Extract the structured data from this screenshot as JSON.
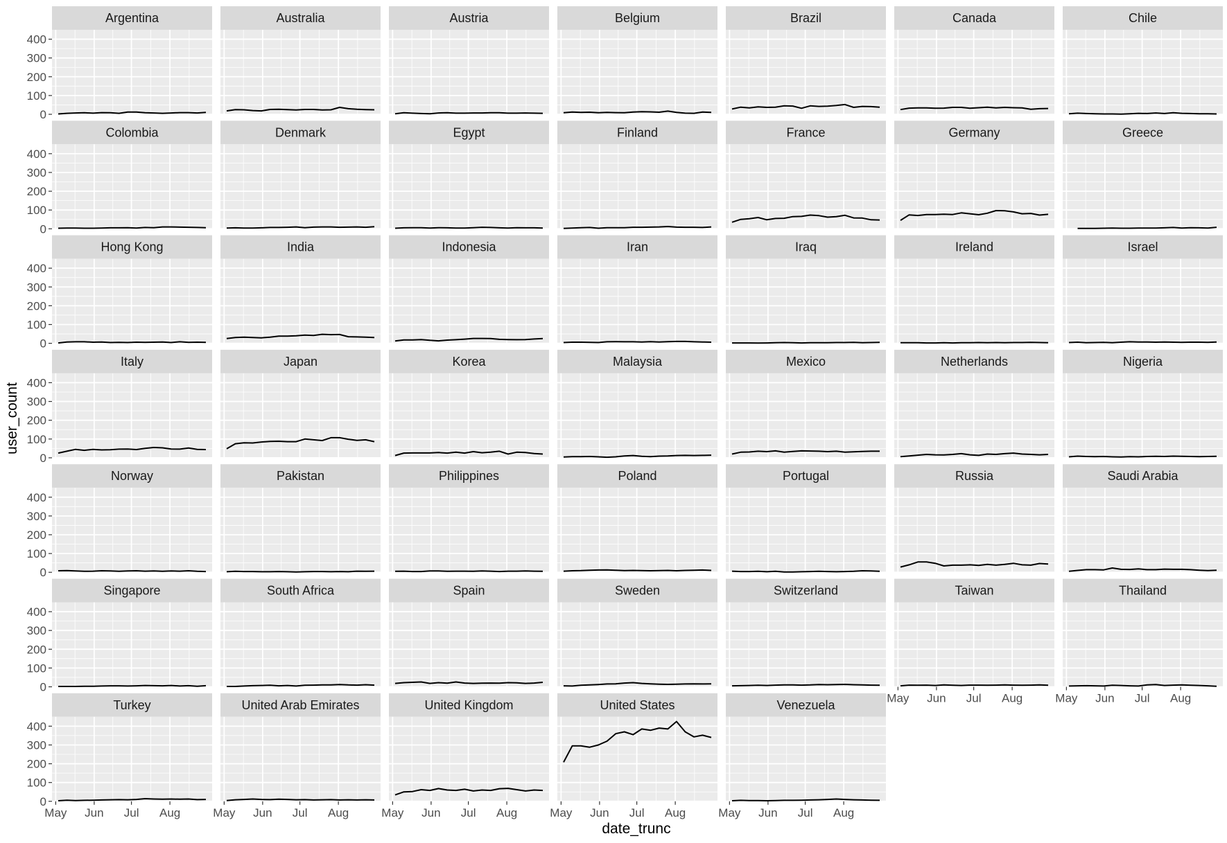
{
  "chart_data": {
    "type": "line",
    "layout": "facet_wrap",
    "xlabel": "date_trunc",
    "ylabel": "user_count",
    "ylim": [
      0,
      450
    ],
    "y_ticks": [
      0,
      100,
      200,
      300,
      400
    ],
    "y_tick_labels": [
      "0",
      "100",
      "200",
      "300",
      "400"
    ],
    "xlim": [
      "2021-04-28",
      "2021-09-04"
    ],
    "x_ticks": [
      "2021-05-01",
      "2021-06-01",
      "2021-07-01",
      "2021-08-01"
    ],
    "x_tick_labels": [
      "May",
      "Jun",
      "Jul",
      "Aug"
    ],
    "x_dates": [
      "2021-05-03",
      "2021-05-10",
      "2021-05-17",
      "2021-05-24",
      "2021-05-31",
      "2021-06-07",
      "2021-06-14",
      "2021-06-21",
      "2021-06-28",
      "2021-07-05",
      "2021-07-12",
      "2021-07-19",
      "2021-07-26",
      "2021-08-02",
      "2021-08-09",
      "2021-08-16",
      "2021-08-23",
      "2021-08-30"
    ],
    "grid": true,
    "colors": {
      "panel_bg": "#ebebeb",
      "strip_bg": "#d9d9d9",
      "grid": "#ffffff",
      "line": "#000000",
      "tick": "#333333"
    },
    "series": [
      {
        "name": "Argentina",
        "values": [
          2,
          5,
          7,
          8,
          6,
          9,
          8,
          5,
          12,
          12,
          8,
          7,
          5,
          7,
          9,
          9,
          7,
          10
        ]
      },
      {
        "name": "Australia",
        "values": [
          18,
          25,
          24,
          20,
          18,
          26,
          27,
          25,
          23,
          26,
          26,
          23,
          24,
          37,
          30,
          27,
          25,
          24
        ]
      },
      {
        "name": "Austria",
        "values": [
          3,
          8,
          6,
          4,
          3,
          7,
          8,
          6,
          6,
          7,
          7,
          8,
          8,
          6,
          6,
          7,
          6,
          5
        ]
      },
      {
        "name": "Belgium",
        "values": [
          8,
          12,
          10,
          11,
          8,
          10,
          9,
          8,
          12,
          14,
          13,
          11,
          17,
          10,
          6,
          5,
          12,
          10
        ]
      },
      {
        "name": "Brazil",
        "values": [
          28,
          38,
          34,
          40,
          37,
          38,
          45,
          44,
          32,
          45,
          42,
          43,
          47,
          52,
          37,
          42,
          41,
          38
        ]
      },
      {
        "name": "Canada",
        "values": [
          25,
          33,
          34,
          34,
          32,
          33,
          37,
          37,
          32,
          35,
          38,
          34,
          37,
          35,
          34,
          27,
          30,
          31
        ]
      },
      {
        "name": "Chile",
        "values": [
          3,
          6,
          4,
          3,
          2,
          2,
          1,
          3,
          5,
          4,
          7,
          4,
          8,
          5,
          4,
          3,
          3,
          2
        ]
      },
      {
        "name": "Colombia",
        "values": [
          3,
          4,
          4,
          3,
          3,
          4,
          5,
          5,
          6,
          4,
          7,
          6,
          10,
          10,
          9,
          8,
          7,
          6
        ]
      },
      {
        "name": "Denmark",
        "values": [
          4,
          5,
          4,
          4,
          5,
          7,
          7,
          8,
          10,
          6,
          9,
          10,
          10,
          8,
          9,
          10,
          8,
          11
        ]
      },
      {
        "name": "Egypt",
        "values": [
          3,
          5,
          6,
          6,
          4,
          6,
          5,
          4,
          4,
          6,
          8,
          7,
          5,
          4,
          6,
          5,
          5,
          4
        ]
      },
      {
        "name": "Finland",
        "values": [
          2,
          4,
          6,
          7,
          3,
          6,
          6,
          6,
          8,
          8,
          9,
          10,
          12,
          9,
          8,
          8,
          7,
          10
        ]
      },
      {
        "name": "France",
        "values": [
          35,
          50,
          54,
          60,
          48,
          55,
          56,
          65,
          66,
          73,
          70,
          62,
          65,
          72,
          58,
          57,
          48,
          47
        ]
      },
      {
        "name": "Germany",
        "values": [
          45,
          74,
          71,
          76,
          76,
          78,
          76,
          85,
          80,
          75,
          83,
          97,
          96,
          90,
          80,
          82,
          73,
          77
        ]
      },
      {
        "name": "Greece",
        "values": [
          null,
          2,
          2,
          2,
          3,
          4,
          3,
          3,
          4,
          4,
          4,
          5,
          7,
          4,
          6,
          5,
          4,
          8
        ]
      },
      {
        "name": "Hong Kong",
        "values": [
          2,
          7,
          8,
          8,
          6,
          7,
          4,
          5,
          4,
          6,
          5,
          6,
          7,
          4,
          8,
          5,
          6,
          5
        ]
      },
      {
        "name": "India",
        "values": [
          25,
          31,
          33,
          31,
          29,
          33,
          38,
          38,
          40,
          44,
          42,
          48,
          46,
          47,
          35,
          34,
          33,
          31
        ]
      },
      {
        "name": "Indonesia",
        "values": [
          12,
          18,
          18,
          20,
          16,
          13,
          17,
          19,
          22,
          26,
          26,
          25,
          21,
          20,
          19,
          20,
          23,
          25
        ]
      },
      {
        "name": "Iran",
        "values": [
          4,
          6,
          6,
          5,
          4,
          8,
          9,
          8,
          8,
          7,
          9,
          7,
          9,
          10,
          10,
          8,
          7,
          6
        ]
      },
      {
        "name": "Iraq",
        "values": [
          2,
          2,
          2,
          1,
          2,
          3,
          4,
          3,
          2,
          3,
          3,
          3,
          4,
          4,
          5,
          3,
          4,
          5
        ]
      },
      {
        "name": "Ireland",
        "values": [
          3,
          3,
          3,
          2,
          2,
          3,
          2,
          3,
          3,
          4,
          3,
          4,
          3,
          4,
          4,
          5,
          4,
          3
        ]
      },
      {
        "name": "Israel",
        "values": [
          4,
          6,
          3,
          4,
          5,
          3,
          6,
          8,
          7,
          7,
          6,
          7,
          6,
          5,
          6,
          6,
          5,
          7
        ]
      },
      {
        "name": "Italy",
        "values": [
          25,
          35,
          45,
          40,
          45,
          42,
          43,
          46,
          47,
          44,
          50,
          55,
          53,
          47,
          46,
          52,
          45,
          44
        ]
      },
      {
        "name": "Japan",
        "values": [
          48,
          75,
          80,
          79,
          84,
          87,
          88,
          86,
          86,
          100,
          96,
          92,
          107,
          107,
          99,
          93,
          96,
          86
        ]
      },
      {
        "name": "Korea",
        "values": [
          12,
          25,
          26,
          26,
          26,
          28,
          25,
          30,
          25,
          33,
          27,
          30,
          35,
          20,
          30,
          28,
          23,
          20
        ]
      },
      {
        "name": "Malaysia",
        "values": [
          4,
          6,
          6,
          7,
          5,
          3,
          5,
          10,
          12,
          8,
          6,
          9,
          10,
          12,
          13,
          12,
          13,
          14
        ]
      },
      {
        "name": "Mexico",
        "values": [
          20,
          30,
          31,
          35,
          33,
          37,
          30,
          34,
          37,
          36,
          35,
          33,
          35,
          30,
          32,
          34,
          35,
          35
        ]
      },
      {
        "name": "Netherlands",
        "values": [
          6,
          10,
          14,
          18,
          16,
          15,
          18,
          22,
          16,
          13,
          20,
          18,
          22,
          25,
          20,
          18,
          16,
          18
        ]
      },
      {
        "name": "Nigeria",
        "values": [
          5,
          9,
          7,
          6,
          7,
          5,
          4,
          6,
          5,
          7,
          8,
          7,
          9,
          8,
          7,
          6,
          7,
          8
        ]
      },
      {
        "name": "Norway",
        "values": [
          8,
          9,
          7,
          5,
          6,
          8,
          7,
          5,
          7,
          8,
          6,
          7,
          5,
          7,
          6,
          8,
          5,
          4
        ]
      },
      {
        "name": "Pakistan",
        "values": [
          3,
          5,
          4,
          4,
          3,
          3,
          4,
          3,
          2,
          3,
          4,
          4,
          3,
          4,
          3,
          6,
          5,
          6
        ]
      },
      {
        "name": "Philippines",
        "values": [
          5,
          6,
          4,
          4,
          7,
          7,
          5,
          6,
          6,
          5,
          7,
          6,
          4,
          6,
          6,
          7,
          6,
          5
        ]
      },
      {
        "name": "Poland",
        "values": [
          6,
          8,
          9,
          11,
          12,
          13,
          11,
          9,
          10,
          9,
          8,
          9,
          10,
          8,
          10,
          11,
          12,
          10
        ]
      },
      {
        "name": "Portugal",
        "values": [
          6,
          4,
          4,
          5,
          3,
          5,
          2,
          2,
          3,
          4,
          5,
          4,
          3,
          4,
          5,
          8,
          7,
          5
        ]
      },
      {
        "name": "Russia",
        "values": [
          28,
          40,
          55,
          55,
          48,
          34,
          38,
          38,
          40,
          37,
          42,
          38,
          42,
          48,
          40,
          38,
          47,
          44
        ]
      },
      {
        "name": "Saudi Arabia",
        "values": [
          5,
          10,
          14,
          14,
          13,
          23,
          16,
          15,
          18,
          14,
          14,
          17,
          16,
          16,
          14,
          11,
          9,
          11
        ]
      },
      {
        "name": "Singapore",
        "values": [
          2,
          2,
          2,
          3,
          3,
          4,
          5,
          5,
          4,
          5,
          7,
          6,
          5,
          7,
          4,
          6,
          3,
          6
        ]
      },
      {
        "name": "South Africa",
        "values": [
          2,
          2,
          4,
          6,
          7,
          8,
          5,
          7,
          4,
          8,
          9,
          10,
          10,
          12,
          10,
          9,
          11,
          9
        ]
      },
      {
        "name": "Spain",
        "values": [
          18,
          22,
          24,
          26,
          18,
          22,
          19,
          26,
          20,
          18,
          19,
          20,
          19,
          22,
          21,
          18,
          20,
          24
        ]
      },
      {
        "name": "Sweden",
        "values": [
          5,
          4,
          8,
          10,
          12,
          15,
          16,
          20,
          22,
          18,
          16,
          14,
          13,
          14,
          15,
          16,
          15,
          16
        ]
      },
      {
        "name": "Switzerland",
        "values": [
          5,
          6,
          7,
          8,
          7,
          9,
          10,
          10,
          9,
          10,
          12,
          11,
          12,
          13,
          11,
          10,
          9,
          8
        ]
      },
      {
        "name": "Taiwan",
        "values": [
          5,
          9,
          8,
          9,
          7,
          10,
          8,
          7,
          9,
          9,
          8,
          9,
          10,
          9,
          8,
          9,
          10,
          8
        ]
      },
      {
        "name": "Thailand",
        "values": [
          4,
          5,
          6,
          5,
          4,
          8,
          7,
          5,
          4,
          10,
          12,
          7,
          9,
          10,
          8,
          7,
          5,
          3
        ]
      },
      {
        "name": "Turkey",
        "values": [
          3,
          6,
          4,
          5,
          6,
          7,
          8,
          9,
          8,
          10,
          14,
          12,
          11,
          12,
          11,
          12,
          9,
          10
        ]
      },
      {
        "name": "United Arab Emirates",
        "values": [
          4,
          8,
          10,
          12,
          10,
          9,
          11,
          10,
          8,
          9,
          7,
          8,
          9,
          7,
          8,
          7,
          8,
          7
        ]
      },
      {
        "name": "United Kingdom",
        "values": [
          34,
          50,
          52,
          62,
          58,
          68,
          60,
          58,
          64,
          55,
          60,
          58,
          67,
          69,
          62,
          55,
          60,
          58
        ]
      },
      {
        "name": "United States",
        "values": [
          208,
          295,
          295,
          288,
          300,
          320,
          360,
          370,
          355,
          385,
          378,
          390,
          385,
          425,
          370,
          343,
          352,
          340
        ]
      },
      {
        "name": "Venezuela",
        "values": [
          3,
          5,
          4,
          4,
          3,
          4,
          5,
          5,
          6,
          7,
          8,
          10,
          12,
          10,
          8,
          7,
          6,
          5
        ]
      }
    ]
  }
}
